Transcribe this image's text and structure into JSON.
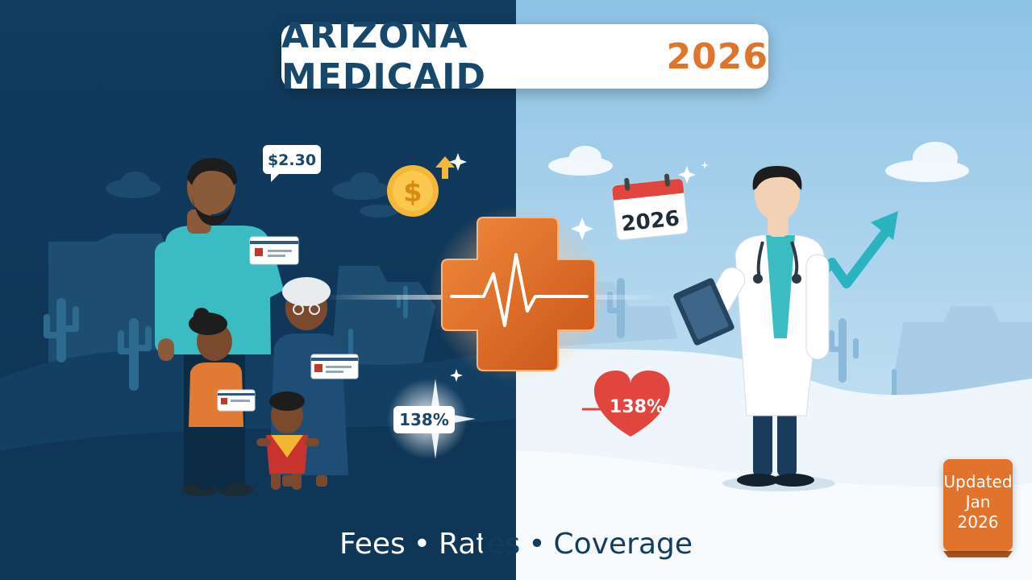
{
  "title": {
    "main": "ARIZONA MEDICAID",
    "year": "2026"
  },
  "price_bubble": "$2.30",
  "percent_left": "138%",
  "percent_right": "138%",
  "calendar_year": "2026",
  "tagline": {
    "part1": "Fees",
    "separator": "•",
    "part2": "Rates",
    "part3": "Coverage"
  },
  "badge": {
    "line1": "Updated",
    "line2": "Jan",
    "line3": "2026"
  },
  "colors": {
    "dark_navy": "#0f3a5c",
    "light_sky": "#9fcbe6",
    "accent_orange": "#e0742c",
    "teal": "#3bbcc2",
    "heart_red": "#e0453e"
  },
  "icons": [
    "dollar-coin-icon",
    "up-arrow-icon",
    "medical-cross-icon",
    "heartbeat-icon",
    "calendar-icon",
    "trend-arrow-icon",
    "heart-icon",
    "sparkle-icon",
    "cactus-icon",
    "cloud-icon",
    "stethoscope-icon",
    "clipboard-icon"
  ]
}
